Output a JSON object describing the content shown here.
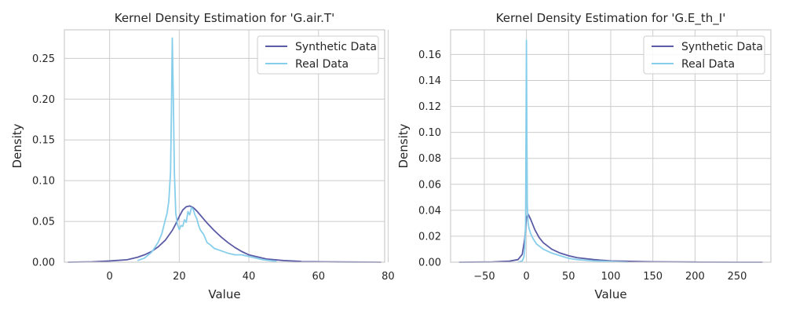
{
  "chart_data": [
    {
      "type": "line",
      "title": "Kernel Density Estimation for 'G.air.T'",
      "xlabel": "Value",
      "ylabel": "Density",
      "xlim": [
        -13,
        79
      ],
      "ylim": [
        0,
        0.285
      ],
      "xticks": [
        0,
        20,
        40,
        60,
        80
      ],
      "yticks": [
        0.0,
        0.05,
        0.1,
        0.15,
        0.2,
        0.25
      ],
      "xtick_labels": [
        "0",
        "20",
        "40",
        "60",
        "80"
      ],
      "ytick_labels": [
        "0.00",
        "0.05",
        "0.10",
        "0.15",
        "0.20",
        "0.25"
      ],
      "grid": true,
      "legend_position": "top-right",
      "series": [
        {
          "name": "Synthetic Data",
          "color": "#5b5ba6",
          "x": [
            -12,
            -5,
            0,
            5,
            8,
            10,
            12,
            14,
            16,
            18,
            19,
            20,
            21,
            22,
            23,
            24,
            25,
            26,
            28,
            30,
            32,
            34,
            36,
            38,
            40,
            42,
            45,
            50,
            55,
            60,
            65,
            70,
            75,
            78
          ],
          "y": [
            0.0,
            0.0005,
            0.0015,
            0.003,
            0.006,
            0.009,
            0.013,
            0.019,
            0.027,
            0.039,
            0.047,
            0.056,
            0.064,
            0.068,
            0.069,
            0.067,
            0.063,
            0.058,
            0.048,
            0.039,
            0.031,
            0.024,
            0.018,
            0.013,
            0.009,
            0.007,
            0.004,
            0.002,
            0.001,
            0.0005,
            0.0003,
            0.0002,
            0.0001,
            0.0
          ]
        },
        {
          "name": "Real Data",
          "color": "#87ceeb",
          "x": [
            8,
            10,
            12,
            13,
            14,
            15,
            16,
            16.5,
            17,
            17.5,
            17.8,
            18,
            18.3,
            18.6,
            19,
            19.5,
            20,
            20.5,
            21,
            21.5,
            22,
            22.5,
            23,
            23.5,
            24,
            24.5,
            25,
            25.5,
            26,
            27,
            28,
            29,
            30,
            32,
            34,
            36,
            38,
            40,
            42,
            44,
            46,
            48
          ],
          "y": [
            0.002,
            0.005,
            0.012,
            0.018,
            0.025,
            0.035,
            0.052,
            0.06,
            0.075,
            0.11,
            0.2,
            0.275,
            0.2,
            0.11,
            0.06,
            0.046,
            0.04,
            0.045,
            0.044,
            0.052,
            0.049,
            0.062,
            0.058,
            0.067,
            0.065,
            0.058,
            0.054,
            0.046,
            0.04,
            0.034,
            0.024,
            0.021,
            0.017,
            0.014,
            0.011,
            0.009,
            0.009,
            0.007,
            0.005,
            0.003,
            0.002,
            0.001
          ]
        }
      ]
    },
    {
      "type": "line",
      "title": "Kernel Density Estimation for 'G.E_th_I'",
      "xlabel": "Value",
      "ylabel": "Density",
      "xlim": [
        -90,
        290
      ],
      "ylim": [
        0,
        0.179
      ],
      "xticks": [
        -50,
        0,
        50,
        100,
        150,
        200,
        250
      ],
      "yticks": [
        0.0,
        0.02,
        0.04,
        0.06,
        0.08,
        0.1,
        0.12,
        0.14,
        0.16
      ],
      "xtick_labels": [
        "−50",
        "0",
        "50",
        "100",
        "150",
        "200",
        "250"
      ],
      "ytick_labels": [
        "0.00",
        "0.02",
        "0.04",
        "0.06",
        "0.08",
        "0.10",
        "0.12",
        "0.14",
        "0.16"
      ],
      "grid": true,
      "legend_position": "top-right",
      "series": [
        {
          "name": "Synthetic Data",
          "color": "#5b5ba6",
          "x": [
            -80,
            -40,
            -20,
            -10,
            -5,
            -2,
            0,
            2,
            5,
            10,
            15,
            20,
            30,
            40,
            50,
            60,
            80,
            100,
            150,
            200,
            250,
            280
          ],
          "y": [
            0.0,
            0.0002,
            0.0008,
            0.002,
            0.006,
            0.018,
            0.034,
            0.037,
            0.033,
            0.025,
            0.019,
            0.015,
            0.01,
            0.007,
            0.005,
            0.0035,
            0.002,
            0.001,
            0.0003,
            0.0001,
            0.0,
            0.0
          ]
        },
        {
          "name": "Real Data",
          "color": "#87ceeb",
          "x": [
            -10,
            -5,
            -3,
            -2,
            -1,
            -0.5,
            0,
            0.5,
            1,
            2,
            3,
            5,
            8,
            12,
            20,
            30,
            40,
            50,
            60,
            80,
            100,
            120
          ],
          "y": [
            0.0,
            0.001,
            0.004,
            0.01,
            0.03,
            0.1,
            0.171,
            0.1,
            0.045,
            0.03,
            0.026,
            0.022,
            0.018,
            0.014,
            0.01,
            0.007,
            0.005,
            0.003,
            0.002,
            0.001,
            0.0005,
            0.0
          ]
        }
      ]
    }
  ]
}
